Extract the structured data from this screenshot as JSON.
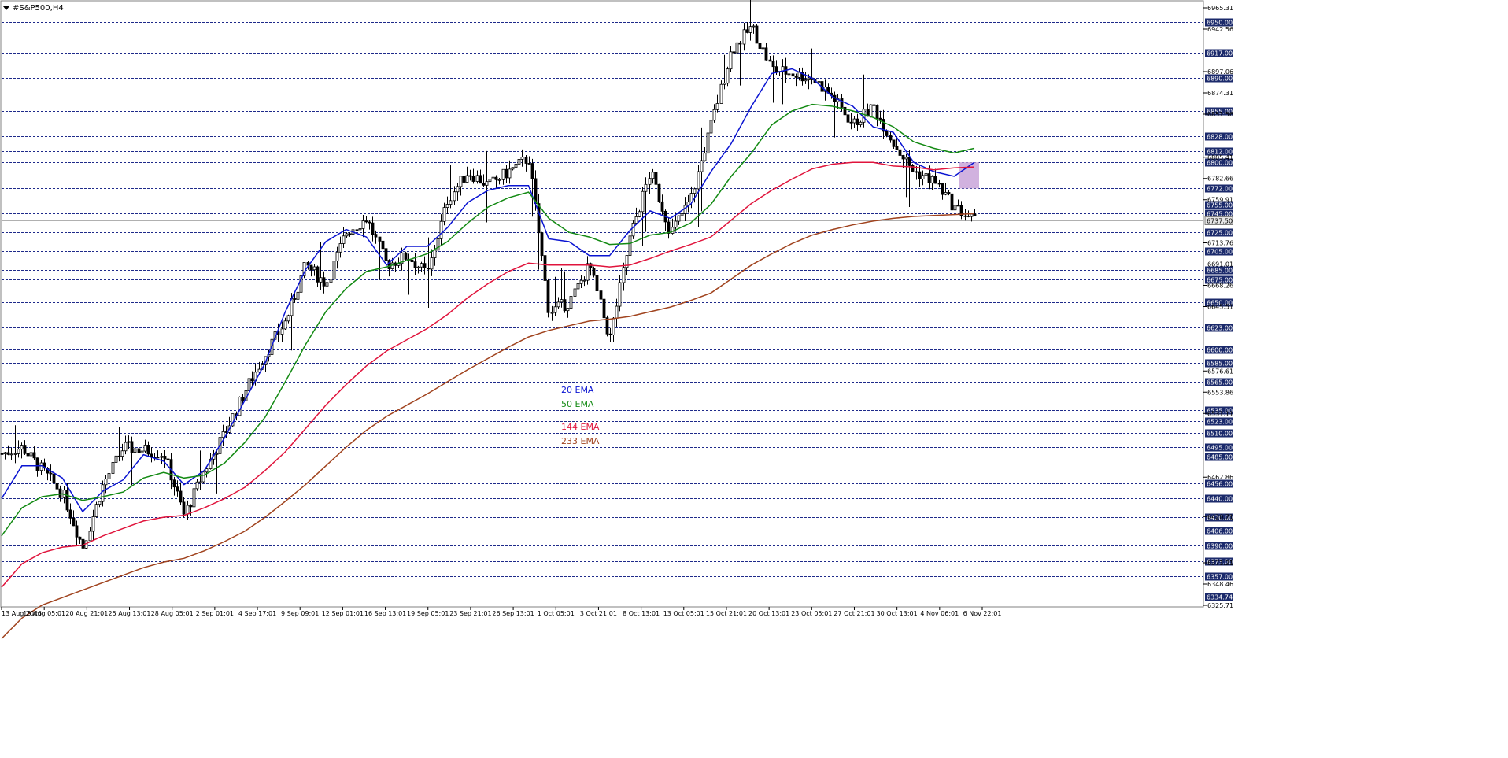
{
  "window": {
    "symbol_label": "#S&P500,H4"
  },
  "colors": {
    "ema20": "#0a14d2",
    "ema50": "#138a13",
    "ema144": "#e0143c",
    "ema233": "#a0431e",
    "candles": "#000000",
    "level_lines": "#1e2a8a",
    "level_tag_bg": "#1b2a6b",
    "zone_fill": "#c9a4d9",
    "current_price_line": "#b0b0b0"
  },
  "ema_legend": [
    {
      "label": "20 EMA",
      "color": "#0a14d2"
    },
    {
      "label": "50 EMA",
      "color": "#138a13"
    },
    {
      "label": "144 EMA",
      "color": "#e0143c"
    },
    {
      "label": "233 EMA",
      "color": "#a0431e"
    }
  ],
  "chart_data": {
    "type": "line",
    "title": "#S&P500,H4",
    "xlabel": "",
    "ylabel": "",
    "ylim": [
      6320,
      6970
    ],
    "grid": false,
    "price_scale_labels": [
      "6965.31",
      "6942.56",
      "6897.06",
      "6874.31",
      "6851.56",
      "6805.41",
      "6782.66",
      "6759.91",
      "6713.76",
      "6691.01",
      "6668.26",
      "6645.51",
      "6576.61",
      "6553.86",
      "6531.11",
      "6462.86",
      "6420.71",
      "6371.21",
      "6348.46",
      "6325.71"
    ],
    "time_labels": [
      "13 Aug 2025",
      "18 Aug 05:01",
      "20 Aug 21:01",
      "25 Aug 13:01",
      "28 Aug 05:01",
      "2 Sep 01:01",
      "4 Sep 17:01",
      "9 Sep 09:01",
      "12 Sep 01:01",
      "16 Sep 13:01",
      "19 Sep 05:01",
      "23 Sep 21:01",
      "26 Sep 13:01",
      "1 Oct 05:01",
      "3 Oct 21:01",
      "8 Oct 13:01",
      "13 Oct 05:01",
      "15 Oct 21:01",
      "20 Oct 13:01",
      "23 Oct 05:01",
      "27 Oct 21:01",
      "30 Oct 13:01",
      "4 Nov 06:01",
      "6 Nov 22:01"
    ],
    "horizontal_levels": [
      "6950.00",
      "6917.00",
      "6890.00",
      "6855.00",
      "6828.00",
      "6812.00",
      "6800.00",
      "6772.00",
      "6755.00",
      "6745.00",
      "6725.00",
      "6705.00",
      "6685.00",
      "6675.00",
      "6650.00",
      "6623.00",
      "6600.00",
      "6585.00",
      "6565.00",
      "6535.00",
      "6523.00",
      "6510.00",
      "6495.00",
      "6485.00",
      "6456.00",
      "6440.00",
      "6420.00",
      "6406.00",
      "6390.00",
      "6373.00",
      "6357.00",
      "6334.74"
    ],
    "current_price": "6737.50",
    "zone": {
      "from": 6772,
      "to": 6800,
      "x_start": 23.63,
      "x_end": 24.0
    },
    "series": [
      {
        "name": "20 EMA",
        "x": [
          0,
          0.5,
          1,
          1.5,
          2,
          2.5,
          3,
          3.5,
          4,
          4.5,
          5,
          5.5,
          6,
          6.5,
          7,
          7.5,
          8,
          8.5,
          9,
          9.5,
          10,
          10.5,
          11,
          11.5,
          12,
          12.5,
          13,
          13.5,
          14,
          14.5,
          15,
          15.5,
          16,
          16.5,
          17,
          17.5,
          18,
          18.5,
          19,
          19.5,
          20,
          20.5,
          21,
          21.5,
          22,
          22.5,
          23,
          23.5,
          24
        ],
        "y": [
          6440,
          6475,
          6475,
          6462,
          6426,
          6448,
          6460,
          6487,
          6480,
          6455,
          6470,
          6505,
          6545,
          6585,
          6640,
          6685,
          6715,
          6728,
          6720,
          6690,
          6710,
          6710,
          6730,
          6757,
          6770,
          6775,
          6775,
          6718,
          6715,
          6700,
          6700,
          6727,
          6748,
          6740,
          6755,
          6790,
          6820,
          6860,
          6895,
          6900,
          6890,
          6870,
          6860,
          6838,
          6832,
          6800,
          6790,
          6785,
          6800
        ]
      },
      {
        "name": "50 EMA",
        "x": [
          0,
          0.5,
          1,
          1.5,
          2,
          2.5,
          3,
          3.5,
          4,
          4.5,
          5,
          5.5,
          6,
          6.5,
          7,
          7.5,
          8,
          8.5,
          9,
          9.5,
          10,
          10.5,
          11,
          11.5,
          12,
          12.5,
          13,
          13.5,
          14,
          14.5,
          15,
          15.5,
          16,
          16.5,
          17,
          17.5,
          18,
          18.5,
          19,
          19.5,
          20,
          20.5,
          21,
          21.5,
          22,
          22.5,
          23,
          23.5,
          24
        ],
        "y": [
          6400,
          6430,
          6442,
          6445,
          6438,
          6442,
          6447,
          6462,
          6468,
          6462,
          6465,
          6478,
          6500,
          6527,
          6565,
          6605,
          6640,
          6665,
          6683,
          6688,
          6695,
          6702,
          6715,
          6735,
          6752,
          6762,
          6768,
          6740,
          6725,
          6720,
          6712,
          6713,
          6722,
          6725,
          6735,
          6755,
          6785,
          6810,
          6840,
          6855,
          6862,
          6860,
          6855,
          6848,
          6838,
          6822,
          6815,
          6810,
          6815
        ]
      },
      {
        "name": "144 EMA",
        "x": [
          0,
          0.5,
          1,
          1.5,
          2,
          2.5,
          3,
          3.5,
          4,
          4.5,
          5,
          5.5,
          6,
          6.5,
          7,
          7.5,
          8,
          8.5,
          9,
          9.5,
          10,
          10.5,
          11,
          11.5,
          12,
          12.5,
          13,
          13.5,
          14,
          14.5,
          15,
          15.5,
          16,
          16.5,
          17,
          17.5,
          18,
          18.5,
          19,
          19.5,
          20,
          20.5,
          21,
          21.5,
          22,
          22.5,
          23,
          23.5,
          24
        ],
        "y": [
          6345,
          6370,
          6382,
          6388,
          6390,
          6400,
          6408,
          6416,
          6420,
          6422,
          6430,
          6440,
          6452,
          6470,
          6490,
          6515,
          6540,
          6562,
          6582,
          6598,
          6610,
          6622,
          6637,
          6655,
          6670,
          6683,
          6692,
          6690,
          6690,
          6690,
          6688,
          6690,
          6697,
          6705,
          6712,
          6720,
          6738,
          6756,
          6770,
          6782,
          6793,
          6798,
          6800,
          6800,
          6796,
          6795,
          6792,
          6794,
          6795
        ]
      },
      {
        "name": "233 EMA",
        "x": [
          0,
          0.5,
          1,
          1.5,
          2,
          2.5,
          3,
          3.5,
          4,
          4.5,
          5,
          5.5,
          6,
          6.5,
          7,
          7.5,
          8,
          8.5,
          9,
          9.5,
          10,
          10.5,
          11,
          11.5,
          12,
          12.5,
          13,
          13.5,
          14,
          14.5,
          15,
          15.5,
          16,
          16.5,
          17,
          17.5,
          18,
          18.5,
          19,
          19.5,
          20,
          20.5,
          21,
          21.5,
          22,
          22.5,
          23,
          23.5,
          24
        ],
        "y": [
          6290,
          6312,
          6326,
          6334,
          6342,
          6350,
          6358,
          6366,
          6372,
          6376,
          6384,
          6394,
          6405,
          6420,
          6437,
          6455,
          6475,
          6495,
          6513,
          6528,
          6540,
          6552,
          6565,
          6578,
          6590,
          6602,
          6613,
          6620,
          6625,
          6630,
          6632,
          6635,
          6640,
          6645,
          6652,
          6660,
          6675,
          6690,
          6702,
          6713,
          6722,
          6728,
          6733,
          6737,
          6740,
          6742,
          6743,
          6744,
          6745
        ]
      },
      {
        "name": "Price",
        "x": [
          0,
          0.5,
          1,
          1.5,
          2,
          2.5,
          3,
          3.5,
          4,
          4.5,
          5,
          5.5,
          6,
          6.5,
          7,
          7.5,
          8,
          8.5,
          9,
          9.5,
          10,
          10.5,
          11,
          11.5,
          12,
          12.5,
          13,
          13.5,
          14,
          14.5,
          15,
          15.5,
          16,
          16.5,
          17,
          17.5,
          18,
          18.5,
          19,
          19.5,
          20,
          20.5,
          21,
          21.5,
          22,
          22.5,
          23,
          23.5,
          24
        ],
        "y": [
          6488,
          6495,
          6470,
          6445,
          6388,
          6455,
          6495,
          6492,
          6488,
          6422,
          6470,
          6510,
          6555,
          6595,
          6630,
          6690,
          6670,
          6725,
          6740,
          6690,
          6700,
          6680,
          6760,
          6790,
          6775,
          6790,
          6805,
          6640,
          6650,
          6690,
          6610,
          6720,
          6790,
          6725,
          6760,
          6840,
          6920,
          6945,
          6900,
          6895,
          6890,
          6870,
          6840,
          6860,
          6820,
          6790,
          6780,
          6752,
          6737.5
        ]
      }
    ]
  }
}
